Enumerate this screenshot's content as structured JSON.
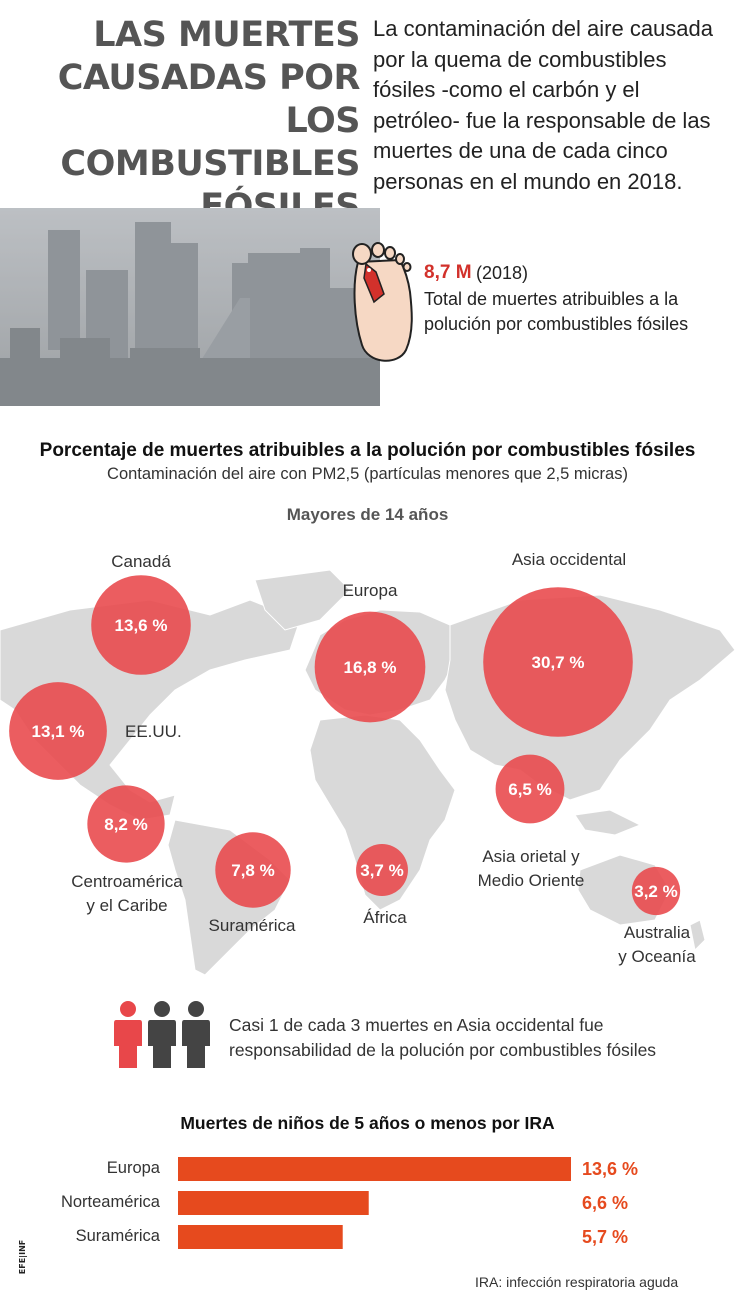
{
  "header": {
    "title_lines": [
      "Las muertes",
      "causadas por los",
      "combustibles",
      "fósiles"
    ],
    "intro": "La contaminación del aire causada por la quema de combustibles fósiles -como el carbón y el petróleo- fue la responsable de las muertes de una de cada cinco personas en el mundo en 2018."
  },
  "stat": {
    "value": "8,7 M",
    "year": "(2018)",
    "description": "Total de muertes atribuibles a la polución por combustibles fósiles",
    "icon": "toe-tag-foot-icon"
  },
  "map_section": {
    "title": "Porcentaje de muertes atribuibles a la polución por combustibles fósiles",
    "subtitle": "Contaminación del aire con PM2,5 (partículas menores que 2,5 micras)",
    "group_label": "Mayores de 14 años"
  },
  "chart_data": [
    {
      "type": "bubble-map",
      "regions": [
        {
          "name": "Canadá",
          "label_lines": [
            "Canadá"
          ],
          "value": 13.6,
          "value_label": "13,6 %"
        },
        {
          "name": "EE.UU.",
          "label_lines": [
            "EE.UU."
          ],
          "value": 13.1,
          "value_label": "13,1 %"
        },
        {
          "name": "Centroamérica y el Caribe",
          "label_lines": [
            "Centroamérica",
            "y el Caribe"
          ],
          "value": 8.2,
          "value_label": "8,2 %"
        },
        {
          "name": "Suramérica",
          "label_lines": [
            "Suramérica"
          ],
          "value": 7.8,
          "value_label": "7,8 %"
        },
        {
          "name": "Europa",
          "label_lines": [
            "Europa"
          ],
          "value": 16.8,
          "value_label": "16,8 %"
        },
        {
          "name": "África",
          "label_lines": [
            "África"
          ],
          "value": 3.7,
          "value_label": "3,7 %"
        },
        {
          "name": "Asia occidental",
          "label_lines": [
            "Asia occidental"
          ],
          "value": 30.7,
          "value_label": "30,7 %"
        },
        {
          "name": "Asia oriental y Medio Oriente",
          "label_lines": [
            "Asia orietal y",
            "Medio Oriente"
          ],
          "value": 6.5,
          "value_label": "6,5 %"
        },
        {
          "name": "Australia y Oceanía",
          "label_lines": [
            "Australia",
            "y Oceanía"
          ],
          "value": 3.2,
          "value_label": "3,2 %"
        }
      ],
      "bubble_color": "#e8474a",
      "land_color": "#d9d9d9"
    },
    {
      "type": "bar",
      "title": "Muertes de niños de 5 años o menos por IRA",
      "categories": [
        "Europa",
        "Norteamérica",
        "Suramérica"
      ],
      "values": [
        13.6,
        6.6,
        5.7
      ],
      "value_labels": [
        "13,6 %",
        "6,6 %",
        "5,7 %"
      ],
      "orientation": "horizontal",
      "bar_color": "#e64a1e",
      "xlim": [
        0,
        13.6
      ]
    }
  ],
  "note": {
    "text": "Casi 1 de cada 3 muertes en Asia occidental fue responsabilidad de la polución por combustibles fósiles",
    "icon": "three-people-icon",
    "highlight_color": "#e8474a",
    "other_color": "#444444"
  },
  "footnote": "IRA: infección respiratoria aguda",
  "credit": "EFE|infografía"
}
